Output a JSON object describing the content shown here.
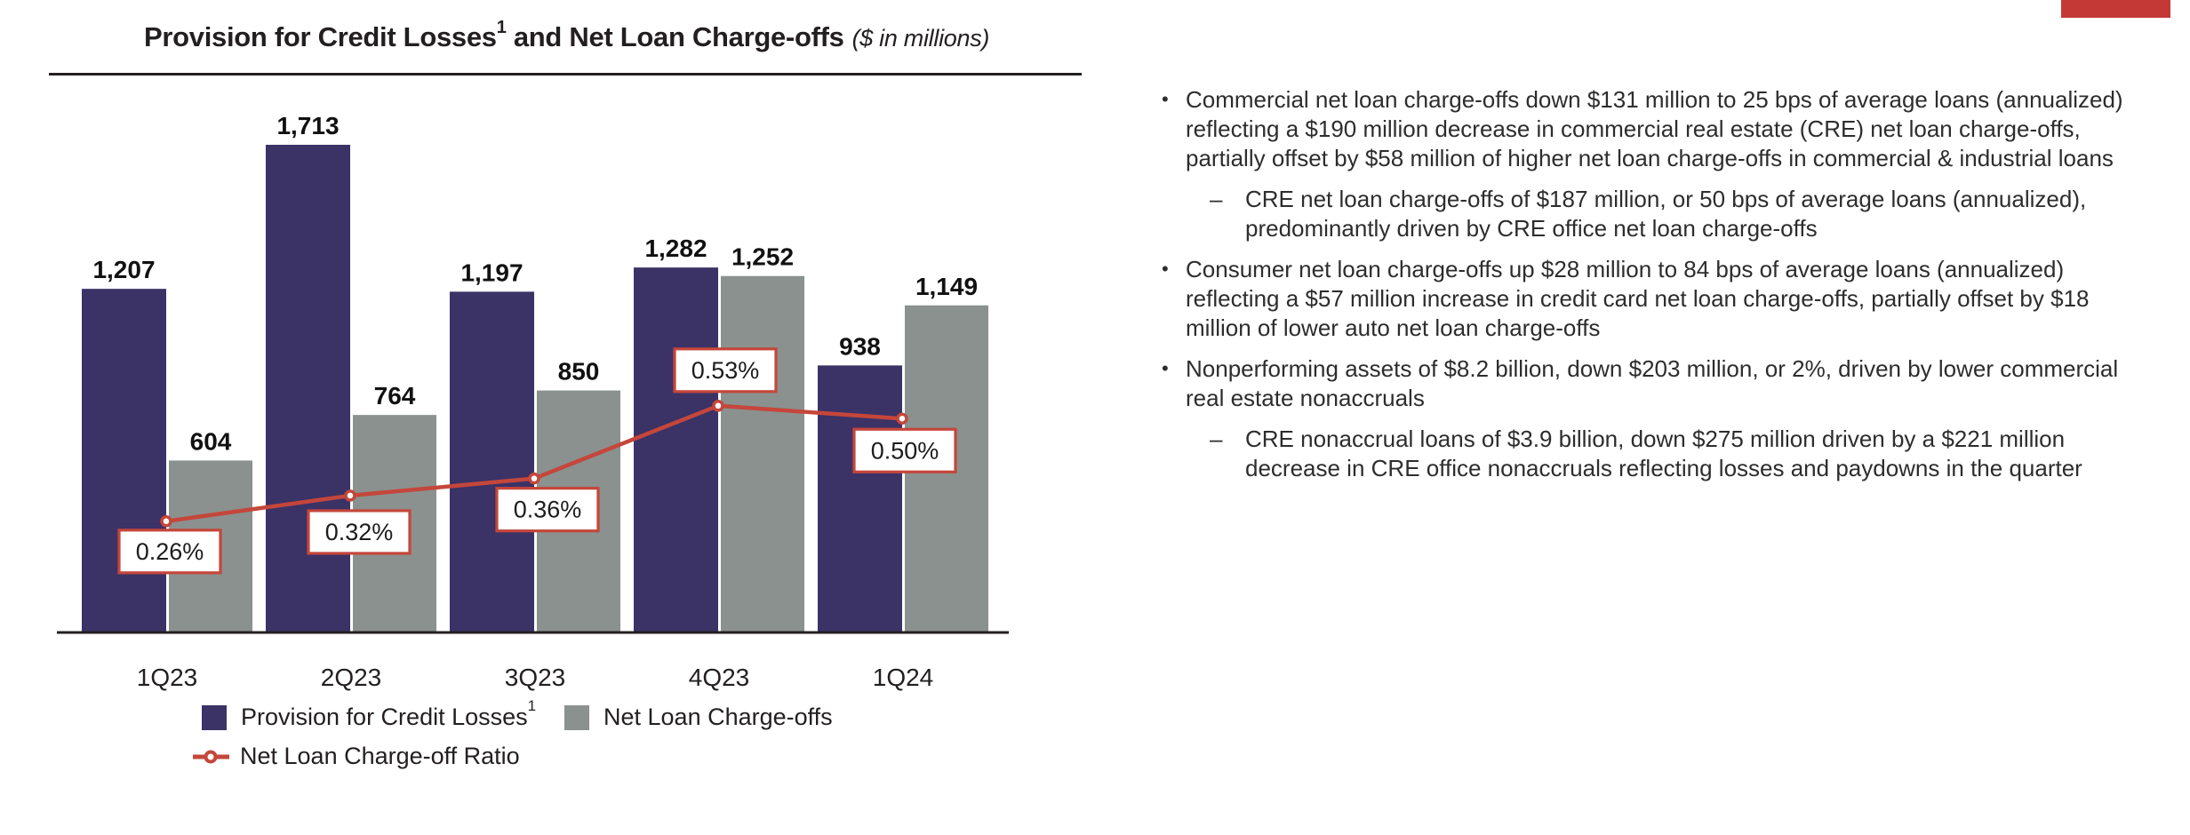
{
  "header": {
    "title_main": "Provision for Credit Losses",
    "title_footnote_marker": "1",
    "title_main2": " and Net Loan Charge-offs",
    "title_units": "($ in millions)"
  },
  "colors": {
    "navy": "#3B3266",
    "gray": "#8A918F",
    "red": "#C5463A",
    "corner_red": "#C43936",
    "ink": "#231F20"
  },
  "chart_data": {
    "type": "bar+line",
    "title": "Provision for Credit Losses and Net Loan Charge-offs ($ in millions)",
    "categories": [
      "1Q23",
      "2Q23",
      "3Q23",
      "4Q23",
      "1Q24"
    ],
    "series": [
      {
        "name": "Provision for Credit Losses",
        "footnote_marker": "1",
        "color": "#3B3266",
        "values": [
          1207,
          1713,
          1197,
          1282,
          938
        ],
        "labels": [
          "1,207",
          "1,713",
          "1,197",
          "1,282",
          "938"
        ]
      },
      {
        "name": "Net Loan Charge-offs",
        "color": "#8A918F",
        "values": [
          604,
          764,
          850,
          1252,
          1149
        ],
        "labels": [
          "604",
          "764",
          "850",
          "1,252",
          "1,149"
        ]
      }
    ],
    "line_series": {
      "name": "Net Loan Charge-off Ratio",
      "color": "#C5463A",
      "values_pct": [
        0.26,
        0.32,
        0.36,
        0.53,
        0.5
      ],
      "labels": [
        "0.26%",
        "0.32%",
        "0.36%",
        "0.53%",
        "0.50%"
      ]
    },
    "ylim": [
      0,
      1780
    ],
    "grid": false,
    "legend_position": "bottom-left"
  },
  "legend": {
    "item1": "Provision for Credit Losses",
    "item1_sup": "1",
    "item2": "Net Loan Charge-offs",
    "item3": "Net Loan Charge-off Ratio"
  },
  "bullets_config": {
    "bullet_glyph": "•",
    "sub_glyph": "–"
  },
  "bullets": [
    {
      "level": 1,
      "text": "Commercial net loan charge-offs down $131 million to 25 bps of average loans (annualized) reflecting a $190 million decrease in commercial real estate (CRE) net loan charge-offs, partially offset by $58 million of higher net loan charge-offs in commercial & industrial loans"
    },
    {
      "level": 2,
      "text": "CRE net loan charge-offs of $187 million, or 50 bps of average loans (annualized), predominantly driven by CRE office net loan charge-offs"
    },
    {
      "level": 1,
      "text": "Consumer net loan charge-offs up $28 million to 84 bps of average loans (annualized) reflecting a $57 million increase in credit card net loan charge-offs, partially offset by $18 million of lower auto net loan charge-offs"
    },
    {
      "level": 1,
      "text": "Nonperforming assets of $8.2 billion, down $203 million, or 2%, driven by lower commercial real estate nonaccruals"
    },
    {
      "level": 2,
      "text": "CRE nonaccrual loans of $3.9 billion, down $275 million driven by a $221 million decrease in CRE office nonaccruals reflecting losses and paydowns in the quarter"
    }
  ]
}
